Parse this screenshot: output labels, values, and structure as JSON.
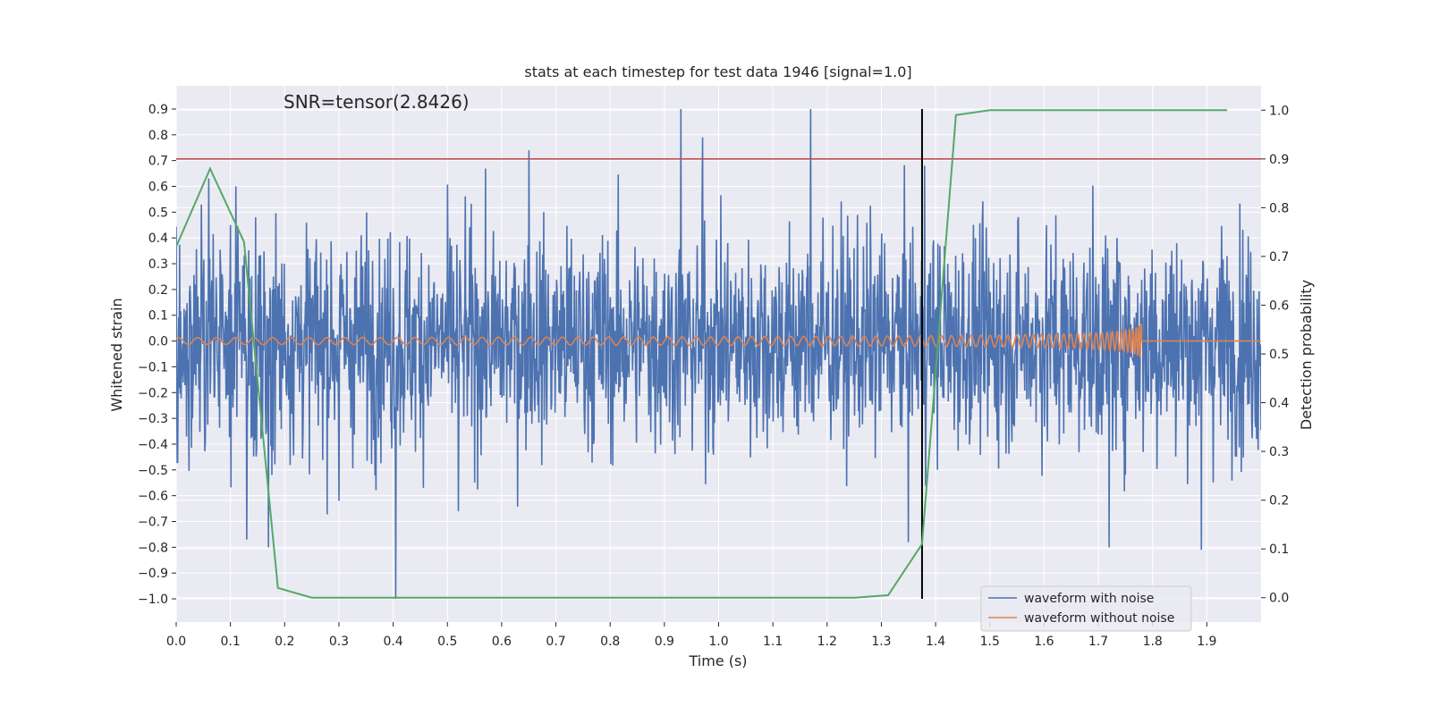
{
  "chart_data": {
    "type": "line",
    "title": "stats at each timestep for test data 1946 [signal=1.0]",
    "annotation": "SNR=tensor(2.8426)",
    "xlabel": "Time (s)",
    "ylabel": "Whitened strain",
    "y2label": "Detection probability",
    "xlim": [
      0.0,
      2.0
    ],
    "ylim": [
      -1.09,
      0.99
    ],
    "y2lim": [
      -0.05,
      1.05
    ],
    "x_ticks": [
      "0.0",
      "0.1",
      "0.2",
      "0.3",
      "0.4",
      "0.5",
      "0.6",
      "0.7",
      "0.8",
      "0.9",
      "1.0",
      "1.1",
      "1.2",
      "1.3",
      "1.4",
      "1.5",
      "1.6",
      "1.7",
      "1.8",
      "1.9"
    ],
    "y_ticks": [
      "0.9",
      "0.8",
      "0.7",
      "0.6",
      "0.5",
      "0.4",
      "0.3",
      "0.2",
      "0.1",
      "0.0",
      "−0.1",
      "−0.2",
      "−0.3",
      "−0.4",
      "−0.5",
      "−0.6",
      "−0.7",
      "−0.8",
      "−0.9",
      "−1.0"
    ],
    "y2_ticks": [
      "1.0",
      "0.9",
      "0.8",
      "0.7",
      "0.6",
      "0.5",
      "0.4",
      "0.3",
      "0.2",
      "0.1",
      "0.0"
    ],
    "grid": true,
    "legend_position": "lower right",
    "colors": {
      "noisy": "#4c72b0",
      "clean": "#dd8452",
      "probability": "#55a868",
      "threshold": "#c44e52",
      "marker": "#000000",
      "background": "#eaeaf2"
    },
    "series": [
      {
        "name": "waveform with noise",
        "axis": "left",
        "x_start": 0.0,
        "x_end": 2.0,
        "amplitude_range": [
          -1.0,
          0.9
        ],
        "peaks": [
          {
            "x": 0.06,
            "y": 0.63
          },
          {
            "x": 0.11,
            "y": 0.6
          },
          {
            "x": 0.13,
            "y": -0.77
          },
          {
            "x": 0.17,
            "y": 0.62
          },
          {
            "x": 0.17,
            "y": -0.8
          },
          {
            "x": 0.3,
            "y": -0.62
          },
          {
            "x": 0.405,
            "y": -1.0
          },
          {
            "x": 0.52,
            "y": -0.66
          },
          {
            "x": 0.65,
            "y": 0.74
          },
          {
            "x": 0.93,
            "y": 0.9
          },
          {
            "x": 0.97,
            "y": 0.79
          },
          {
            "x": 1.17,
            "y": 0.9
          },
          {
            "x": 1.35,
            "y": -0.78
          },
          {
            "x": 1.38,
            "y": 0.68
          },
          {
            "x": 1.72,
            "y": -0.8
          },
          {
            "x": 1.89,
            "y": -0.81
          }
        ]
      },
      {
        "name": "waveform without noise",
        "axis": "left",
        "description": "chirp: amplitude rising from about 0.01 to 0.13, frequency increasing, ending at x = 1.78",
        "x_start": 0.0,
        "merger_x": 1.78,
        "peak_amplitude": 0.13
      },
      {
        "name": "detection probability",
        "axis": "right",
        "x": [
          0.0,
          0.0625,
          0.125,
          0.1875,
          0.25,
          0.3125,
          1.25,
          1.3125,
          1.375,
          1.4375,
          1.5,
          1.5625,
          1.9375
        ],
        "y": [
          0.72,
          0.88,
          0.73,
          0.02,
          0.0,
          0.0,
          0.0,
          0.005,
          0.11,
          0.99,
          1.0,
          1.0,
          1.0
        ]
      }
    ],
    "hlines": [
      {
        "axis": "right",
        "y": 0.9
      }
    ],
    "vlines": [
      {
        "x": 1.375,
        "y_from": -1.0,
        "y_to": 0.9
      }
    ]
  }
}
